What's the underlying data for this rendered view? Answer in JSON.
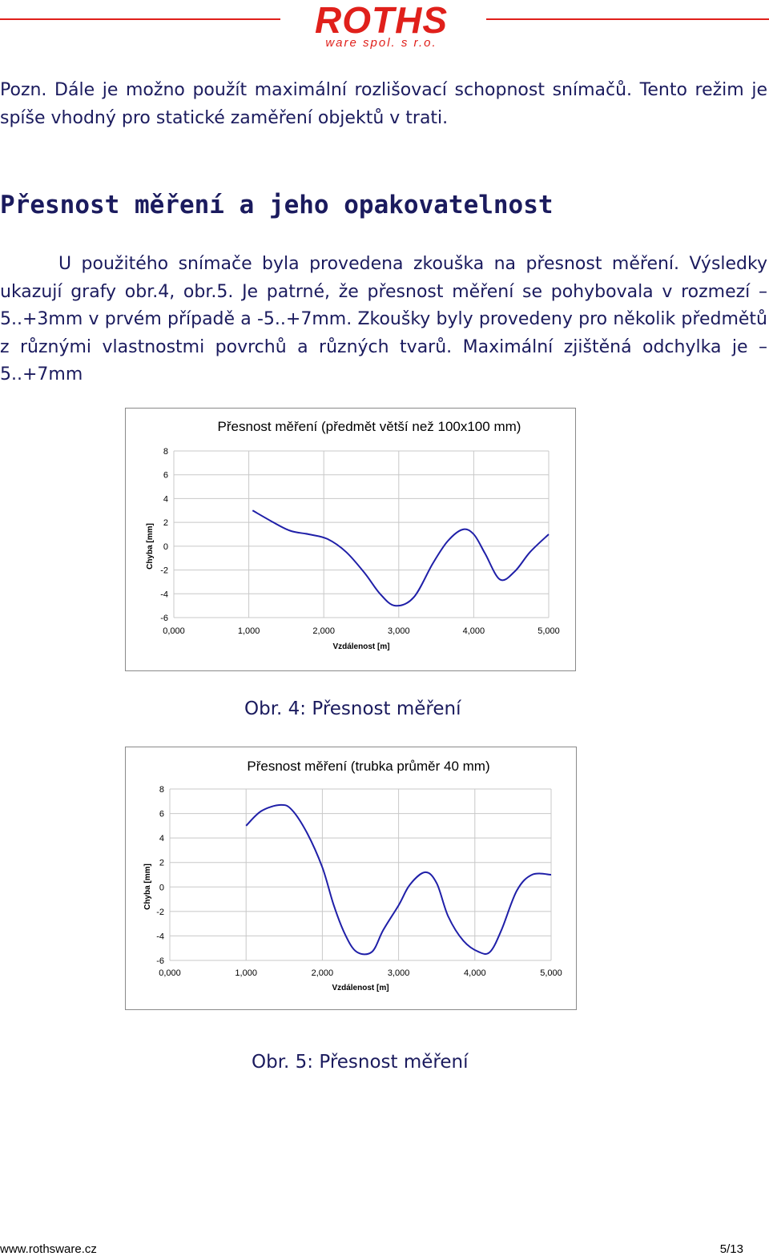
{
  "header": {
    "logo_main": "ROTHS",
    "logo_sub": "ware spol. s r.o.",
    "brand_color": "#e0201b"
  },
  "note": "Pozn. Dále je možno použít maximální rozlišovací schopnost snímačů. Tento režim je spíše vhodný pro statické zaměření objektů v trati.",
  "section_title": "Přesnost měření a jeho opakovatelnost",
  "paragraph": "U použitého snímače byla provedena zkouška na přesnost měření. Výsledky ukazují grafy obr.4, obr.5. Je patrné, že přesnost měření se pohybovala v rozmezí –5..+3mm v prvém případě a -5..+7mm. Zkoušky byly provedeny pro několik předmětů z různými vlastnostmi povrchů a různých tvarů. Maximální zjištěná odchylka je –5..+7mm",
  "chart_data": [
    {
      "type": "line",
      "title": "Přesnost měření (předmět větší než 100x100 mm)",
      "xlabel": "Vzdálenost [m]",
      "ylabel": "Chyba [mm]",
      "xlim": [
        0,
        5
      ],
      "ylim": [
        -6,
        8
      ],
      "x_ticks": [
        "0,000",
        "1,000",
        "2,000",
        "3,000",
        "4,000",
        "5,000"
      ],
      "y_ticks": [
        "8",
        "6",
        "4",
        "2",
        "0",
        "-2",
        "-4",
        "-6"
      ],
      "grid": true,
      "line_color": "#1f1fa8",
      "series": [
        {
          "x": [
            1.05,
            1.3,
            1.55,
            1.8,
            2.05,
            2.3,
            2.55,
            2.75,
            2.95,
            3.2,
            3.45,
            3.65,
            3.85,
            4.0,
            4.15,
            4.35,
            4.55,
            4.75,
            5.0
          ],
          "y": [
            3.0,
            2.1,
            1.3,
            1.0,
            0.6,
            -0.5,
            -2.3,
            -4.0,
            -5.0,
            -4.3,
            -1.5,
            0.4,
            1.4,
            1.0,
            -0.6,
            -2.8,
            -2.1,
            -0.5,
            1.0
          ]
        }
      ]
    },
    {
      "type": "line",
      "title": "Přesnost měření (trubka průměr 40 mm)",
      "xlabel": "Vzdálenost [m]",
      "ylabel": "Chyba [mm]",
      "xlim": [
        0,
        5
      ],
      "ylim": [
        -6,
        8
      ],
      "x_ticks": [
        "0,000",
        "1,000",
        "2,000",
        "3,000",
        "4,000",
        "5,000"
      ],
      "y_ticks": [
        "8",
        "6",
        "4",
        "2",
        "0",
        "-2",
        "-4",
        "-6"
      ],
      "grid": true,
      "line_color": "#1f1fa8",
      "series": [
        {
          "x": [
            1.0,
            1.2,
            1.45,
            1.6,
            1.8,
            2.0,
            2.15,
            2.3,
            2.45,
            2.65,
            2.8,
            3.0,
            3.15,
            3.35,
            3.5,
            3.65,
            3.85,
            4.05,
            4.2,
            4.35,
            4.55,
            4.75,
            5.0
          ],
          "y": [
            5.0,
            6.2,
            6.7,
            6.3,
            4.4,
            1.6,
            -1.5,
            -3.9,
            -5.3,
            -5.3,
            -3.5,
            -1.5,
            0.2,
            1.2,
            0.3,
            -2.4,
            -4.4,
            -5.3,
            -5.3,
            -3.5,
            -0.3,
            1.0,
            1.0
          ]
        }
      ]
    }
  ],
  "captions": [
    "Obr. 4: Přesnost měření",
    "Obr. 5: Přesnost měření"
  ],
  "footer": {
    "url": "www.rothsware.cz",
    "page": "5/13"
  }
}
